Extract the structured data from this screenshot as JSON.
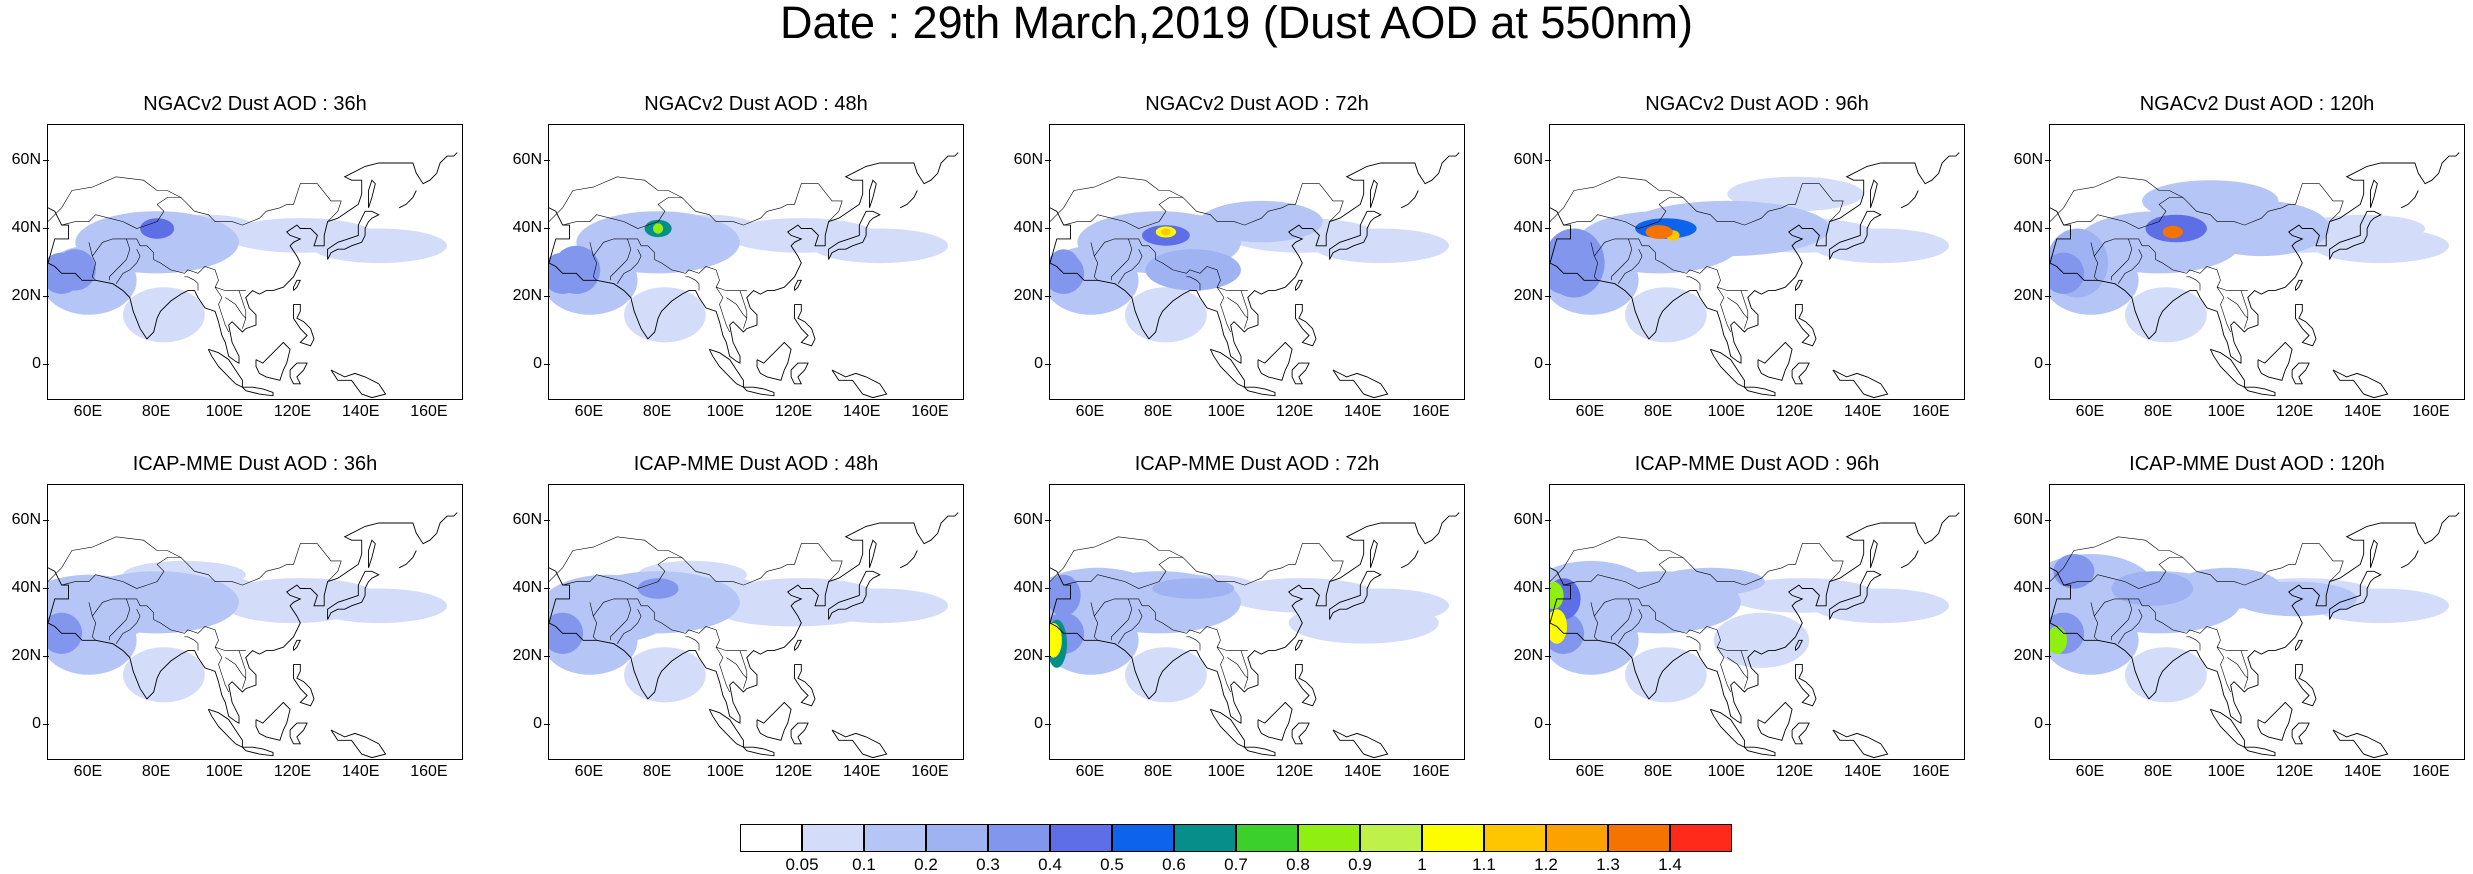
{
  "title": "Date : 29th March,2019 (Dust AOD at 550nm)",
  "x_ticks": [
    "60E",
    "80E",
    "100E",
    "120E",
    "140E",
    "160E"
  ],
  "y_ticks": [
    "60N",
    "40N",
    "20N",
    "0"
  ],
  "panels": [
    {
      "title": "NGACv2 Dust AOD : 36h",
      "peak": 0.5
    },
    {
      "title": "NGACv2 Dust AOD : 48h",
      "peak": 0.8
    },
    {
      "title": "NGACv2 Dust AOD : 72h",
      "peak": 1.1
    },
    {
      "title": "NGACv2 Dust AOD : 96h",
      "peak": 1.4
    },
    {
      "title": "NGACv2 Dust AOD : 120h",
      "peak": 1.4
    },
    {
      "title": "ICAP-MME Dust AOD : 36h",
      "peak": 0.4
    },
    {
      "title": "ICAP-MME Dust AOD : 48h",
      "peak": 0.5
    },
    {
      "title": "ICAP-MME Dust AOD : 72h",
      "peak": 1.1
    },
    {
      "title": "ICAP-MME Dust AOD : 96h",
      "peak": 1.1
    },
    {
      "title": "ICAP-MME Dust AOD : 120h",
      "peak": 0.9
    }
  ],
  "colorbar": {
    "colors": [
      "#ffffff",
      "#d3ddfa",
      "#b5c5f5",
      "#9fb3f2",
      "#8296ee",
      "#5d6ee6",
      "#0d63eb",
      "#068f8a",
      "#3bd12a",
      "#90ee12",
      "#bef24b",
      "#fdfd00",
      "#fdc600",
      "#fca200",
      "#f57300",
      "#ff2a1a"
    ],
    "labels": [
      "0.05",
      "0.1",
      "0.2",
      "0.3",
      "0.4",
      "0.5",
      "0.6",
      "0.7",
      "0.8",
      "0.9",
      "1",
      "1.1",
      "1.2",
      "1.3",
      "1.4"
    ]
  }
}
